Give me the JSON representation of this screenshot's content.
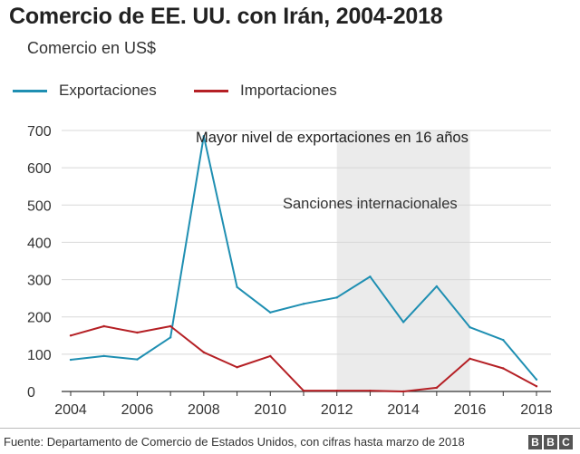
{
  "title": "Comercio de EE. UU. con Irán, 2004-2018",
  "subtitle": "Comercio en US$",
  "legend": {
    "exports_label": "Exportaciones",
    "imports_label": "Importaciones"
  },
  "annotations": {
    "peak": "Mayor nivel de exportaciones en 16 años",
    "sanctions": "Sanciones internacionales"
  },
  "source": "Fuente: Departamento de Comercio de Estados Unidos, con cifras hasta marzo de 2018",
  "brand": {
    "letters": [
      "B",
      "B",
      "C"
    ]
  },
  "colors": {
    "exports": "#1f8fb2",
    "imports": "#b52025",
    "shade": "#ebebeb",
    "grid": "#d8d8d8"
  },
  "chart_data": {
    "type": "line",
    "title": "Comercio de EE. UU. con Irán, 2004-2018",
    "ylabel": "Comercio en US$",
    "xlabel": "",
    "ylim": [
      0,
      700
    ],
    "yticks": [
      0,
      100,
      200,
      300,
      400,
      500,
      600,
      700
    ],
    "xticks": [
      2004,
      2006,
      2008,
      2010,
      2012,
      2014,
      2016,
      2018
    ],
    "x": [
      2004,
      2005,
      2006,
      2007,
      2008,
      2009,
      2010,
      2011,
      2012,
      2013,
      2014,
      2015,
      2016,
      2017,
      2018
    ],
    "series": [
      {
        "name": "Exportaciones",
        "values": [
          85,
          95,
          86,
          145,
          685,
          280,
          212,
          235,
          252,
          308,
          186,
          282,
          172,
          138,
          32
        ]
      },
      {
        "name": "Importaciones",
        "values": [
          150,
          175,
          158,
          175,
          105,
          65,
          95,
          2,
          2,
          2,
          0,
          10,
          88,
          62,
          14
        ]
      }
    ],
    "shaded_range": {
      "from": 2012,
      "to": 2016,
      "label": "Sanciones internacionales"
    },
    "grid": true,
    "legend_position": "top-left"
  }
}
